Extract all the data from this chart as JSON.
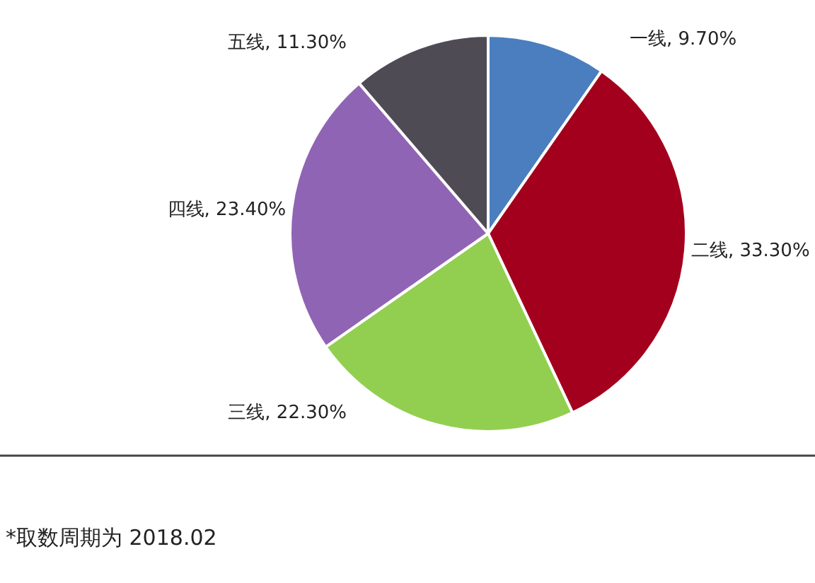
{
  "chart_data": {
    "type": "pie",
    "categories": [
      "一线",
      "二线",
      "三线",
      "四线",
      "五线"
    ],
    "values": [
      9.7,
      33.3,
      22.3,
      23.4,
      11.3
    ],
    "value_labels": [
      "9.70%",
      "33.30%",
      "22.30%",
      "23.40%",
      "11.30%"
    ],
    "colors": [
      "#4a7ebf",
      "#a3001e",
      "#92cf50",
      "#9064b4",
      "#4f4b55"
    ],
    "annotations": [
      "*取数周期为 2018.02"
    ]
  }
}
